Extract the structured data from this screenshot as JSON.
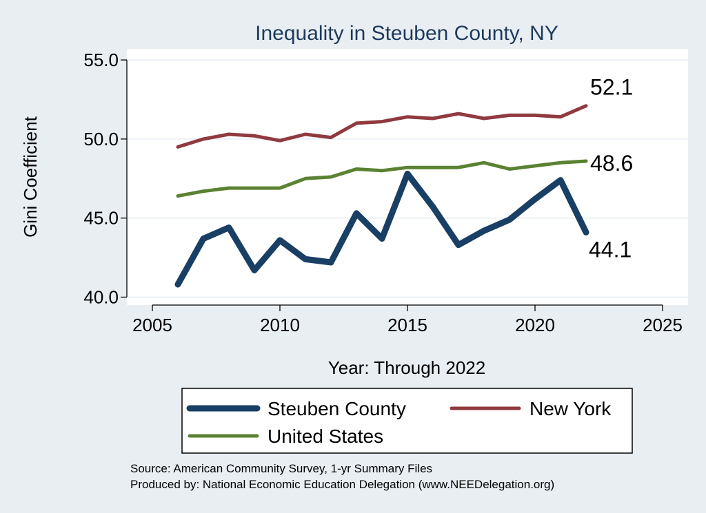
{
  "chart_data": {
    "type": "line",
    "title": "Inequality in Steuben County, NY",
    "xlabel": "Year: Through 2022",
    "ylabel": "Gini Coefficient",
    "xlim": [
      2004,
      2026
    ],
    "ylim": [
      39.5,
      55.7
    ],
    "xticks": [
      2005,
      2010,
      2015,
      2020,
      2025
    ],
    "yticks": [
      40.0,
      45.0,
      50.0,
      55.0
    ],
    "ytick_labels": [
      "40.0",
      "45.0",
      "50.0",
      "55.0"
    ],
    "grid": true,
    "legend_position": "bottom",
    "series": [
      {
        "name": "Steuben County",
        "color": "#1a3f64",
        "x": [
          2006,
          2007,
          2008,
          2009,
          2010,
          2011,
          2012,
          2013,
          2014,
          2015,
          2016,
          2017,
          2018,
          2019,
          2020,
          2021,
          2022
        ],
        "y": [
          40.8,
          43.7,
          44.4,
          41.7,
          43.6,
          42.4,
          42.2,
          45.3,
          43.7,
          47.8,
          45.7,
          43.3,
          44.2,
          44.9,
          46.2,
          47.4,
          44.1
        ],
        "end_label": "44.1"
      },
      {
        "name": "New York",
        "color": "#903a3f",
        "x": [
          2006,
          2007,
          2008,
          2009,
          2010,
          2011,
          2012,
          2013,
          2014,
          2015,
          2016,
          2017,
          2018,
          2019,
          2020,
          2021,
          2022
        ],
        "y": [
          49.5,
          50.0,
          50.3,
          50.2,
          49.9,
          50.3,
          50.1,
          51.0,
          51.1,
          51.4,
          51.3,
          51.6,
          51.3,
          51.5,
          51.5,
          51.4,
          52.1
        ],
        "end_label": "52.1"
      },
      {
        "name": "United States",
        "color": "#5a8232",
        "x": [
          2006,
          2007,
          2008,
          2009,
          2010,
          2011,
          2012,
          2013,
          2014,
          2015,
          2016,
          2017,
          2018,
          2019,
          2020,
          2021,
          2022
        ],
        "y": [
          46.4,
          46.7,
          46.9,
          46.9,
          46.9,
          47.5,
          47.6,
          48.1,
          48.0,
          48.2,
          48.2,
          48.2,
          48.5,
          48.1,
          48.3,
          48.5,
          48.6
        ],
        "end_label": "48.6"
      }
    ],
    "notes": [
      "Source: American Community Survey, 1-yr Summary Files",
      "Produced by: National Economic Education Delegation (www.NEEDelegation.org)"
    ]
  }
}
